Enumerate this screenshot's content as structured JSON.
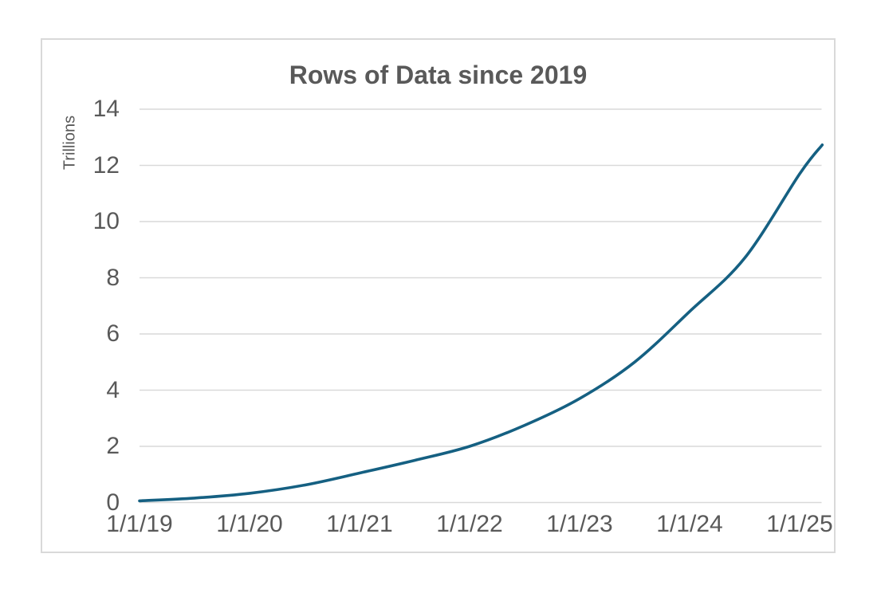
{
  "chart_data": {
    "type": "line",
    "title": "Rows of Data since 2019",
    "ylabel": "Trillions",
    "xlabel": "",
    "ylim": [
      0,
      14
    ],
    "y_ticks": [
      0,
      2,
      4,
      6,
      8,
      10,
      12,
      14
    ],
    "x_tick_labels": [
      "1/1/19",
      "1/1/20",
      "1/1/21",
      "1/1/22",
      "1/1/23",
      "1/1/24",
      "1/1/25"
    ],
    "grid": "horizontal",
    "legend": "none",
    "style": {
      "line_color": "#156082",
      "grid_color": "#d9d9d9",
      "border_color": "#d9d9d9",
      "text_color": "#595959"
    },
    "series": [
      {
        "name": "Rows of data (trillions)",
        "points": [
          {
            "date": "1/1/19",
            "value": 0.06
          },
          {
            "date": "7/1/19",
            "value": 0.16
          },
          {
            "date": "1/1/20",
            "value": 0.33
          },
          {
            "date": "7/1/20",
            "value": 0.62
          },
          {
            "date": "1/1/21",
            "value": 1.05
          },
          {
            "date": "7/1/21",
            "value": 1.5
          },
          {
            "date": "1/1/22",
            "value": 2.0
          },
          {
            "date": "7/1/22",
            "value": 2.75
          },
          {
            "date": "1/1/23",
            "value": 3.7
          },
          {
            "date": "7/1/23",
            "value": 5.0
          },
          {
            "date": "1/1/24",
            "value": 6.8
          },
          {
            "date": "7/1/24",
            "value": 8.7
          },
          {
            "date": "1/1/25",
            "value": 11.7
          },
          {
            "date": "3/15/25",
            "value": 12.73
          }
        ]
      }
    ]
  }
}
